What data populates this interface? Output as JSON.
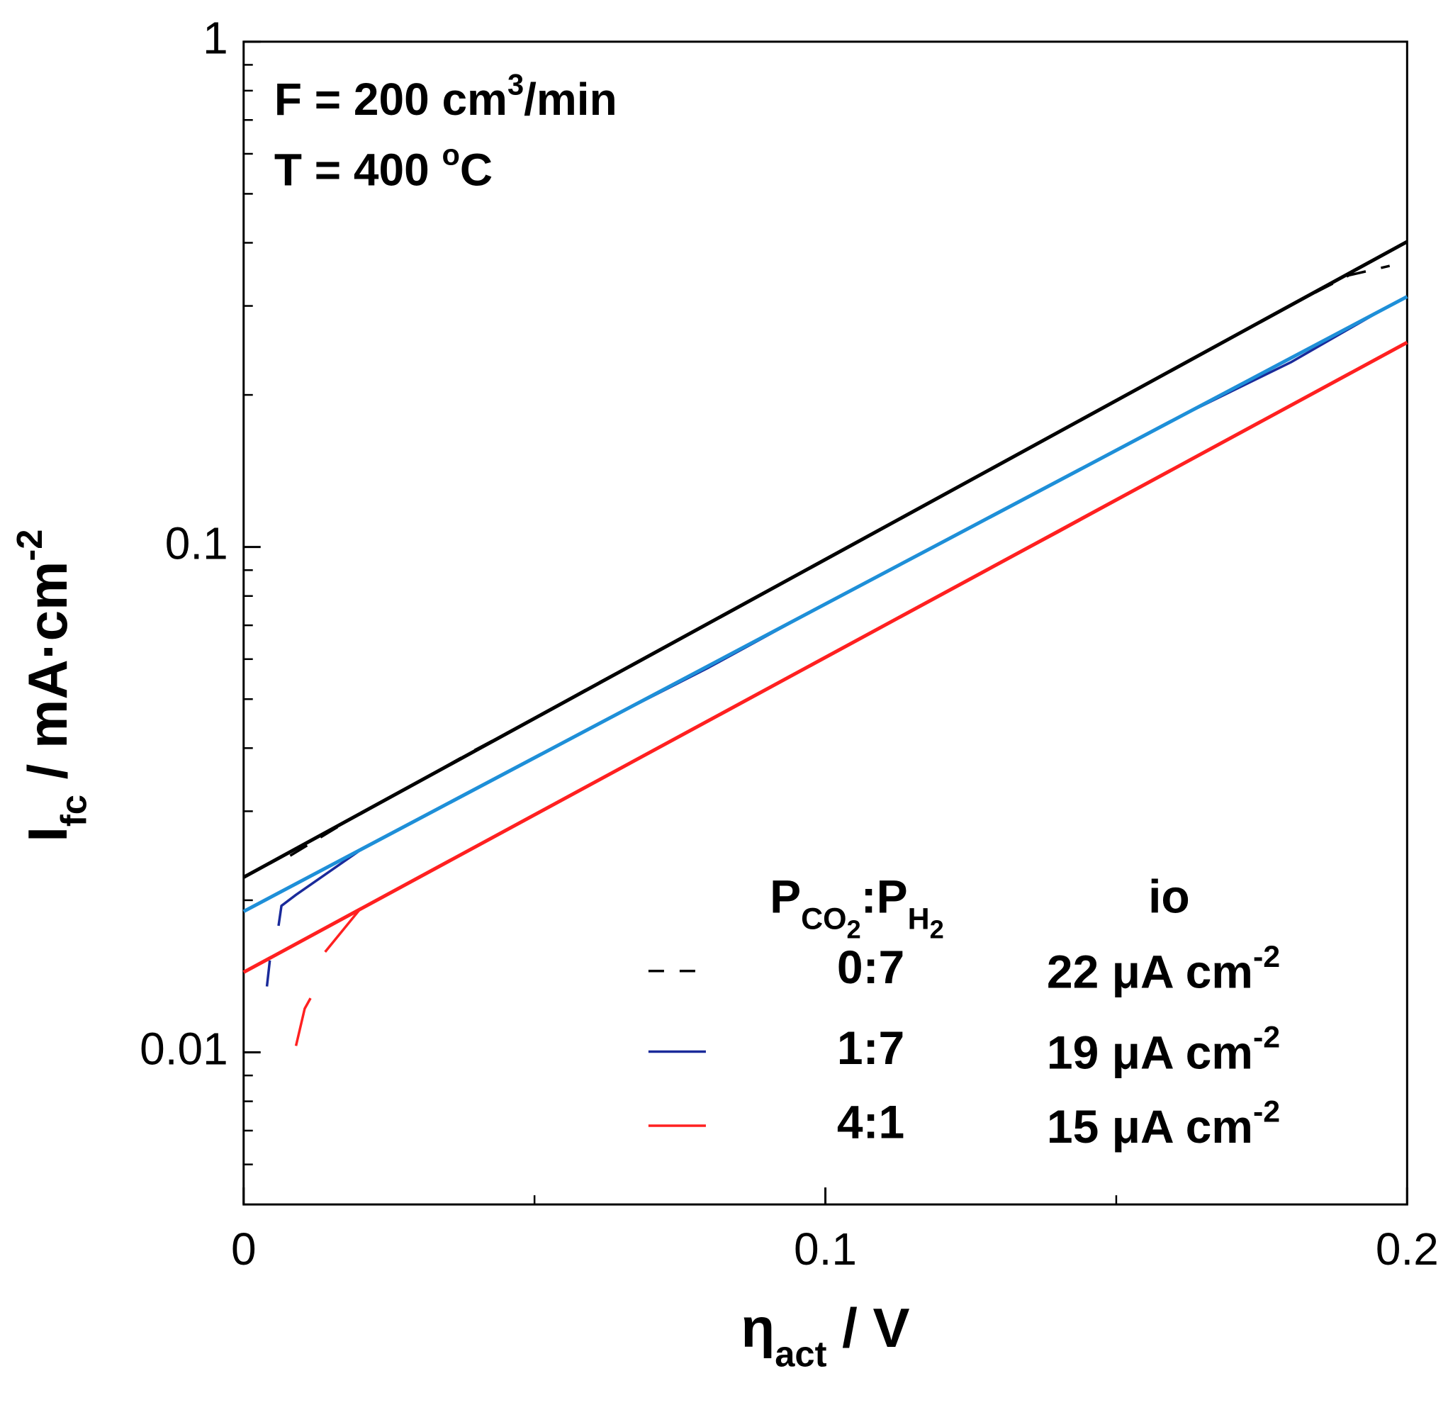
{
  "chart_data": {
    "type": "line",
    "annotations": [
      [
        "F = 200 cm",
        "3",
        "/min"
      ],
      [
        "T = 400 ",
        "o",
        "C"
      ]
    ],
    "x_label": [
      "η",
      "act",
      " / V"
    ],
    "y_label": [
      "I",
      "fc",
      " / mA·cm",
      "-2"
    ],
    "legend_title": [
      "P",
      "CO",
      "2",
      ":P",
      "H",
      "2"
    ],
    "legend_value_title": "io",
    "log_y": true,
    "xlim": [
      0,
      0.2
    ],
    "xticks": [
      0,
      0.1,
      0.2
    ],
    "xminorticks": [
      0.05,
      0.15
    ],
    "ylim": [
      0.005,
      1
    ],
    "yticks": [
      0.01,
      0.1,
      1
    ],
    "yminorticks": [
      0.006,
      0.007,
      0.008,
      0.009,
      0.02,
      0.03,
      0.04,
      0.05,
      0.06,
      0.07,
      0.08,
      0.09,
      0.2,
      0.3,
      0.4,
      0.5,
      0.6,
      0.7,
      0.8,
      0.9
    ],
    "series": [
      {
        "name": "0:7",
        "io_label": [
          "22 μA cm",
          "-2"
        ],
        "color": "#000000",
        "dash": true,
        "x": [
          0.008,
          0.02,
          0.03,
          0.04,
          0.05,
          0.06,
          0.07,
          0.08,
          0.09,
          0.1,
          0.11,
          0.12,
          0.13,
          0.14,
          0.15,
          0.16,
          0.17,
          0.18,
          0.19,
          0.197
        ],
        "values": [
          0.0245,
          0.0297,
          0.0343,
          0.0398,
          0.0458,
          0.0531,
          0.0612,
          0.0707,
          0.0818,
          0.0945,
          0.1092,
          0.1262,
          0.1459,
          0.1686,
          0.1949,
          0.2253,
          0.2604,
          0.301,
          0.345,
          0.36
        ]
      },
      {
        "name": "1:7",
        "io_label": [
          "19 μA cm",
          "-2"
        ],
        "color": "#1a2a9a",
        "dash": false,
        "x": [
          0.004,
          0.0045,
          null,
          0.006,
          0.0065,
          0.009,
          0.02,
          0.04,
          0.06,
          0.08,
          0.1,
          0.12,
          0.14,
          0.16,
          0.18,
          0.196
        ],
        "values": [
          0.0135,
          0.0152,
          null,
          0.0178,
          0.0195,
          0.0205,
          0.0251,
          0.0333,
          0.0441,
          0.0578,
          0.0772,
          0.102,
          0.135,
          0.179,
          0.232,
          0.296
        ]
      },
      {
        "name": "4:1",
        "io_label": [
          "15 μA cm",
          "-2"
        ],
        "color": "#ff2020",
        "dash": false,
        "x": [
          0.009,
          0.0105,
          0.0115,
          null,
          0.014,
          0.02,
          0.04,
          0.06,
          0.08,
          0.1,
          0.12,
          0.14,
          0.16,
          0.18,
          0.195
        ],
        "values": [
          0.0103,
          0.0122,
          0.0128,
          null,
          0.0158,
          0.0192,
          0.0256,
          0.0341,
          0.0454,
          0.0605,
          0.0806,
          0.107,
          0.143,
          0.191,
          0.236
        ]
      },
      {
        "color": "#000000",
        "fit": true,
        "x": [
          0,
          0.2
        ],
        "values": [
          0.0222,
          0.402
        ]
      },
      {
        "color": "#1e8fd8",
        "fit": true,
        "x": [
          0,
          0.2
        ],
        "values": [
          0.019,
          0.313
        ]
      },
      {
        "color": "#ff2020",
        "fit": true,
        "x": [
          0,
          0.2
        ],
        "values": [
          0.0144,
          0.254
        ]
      }
    ]
  }
}
